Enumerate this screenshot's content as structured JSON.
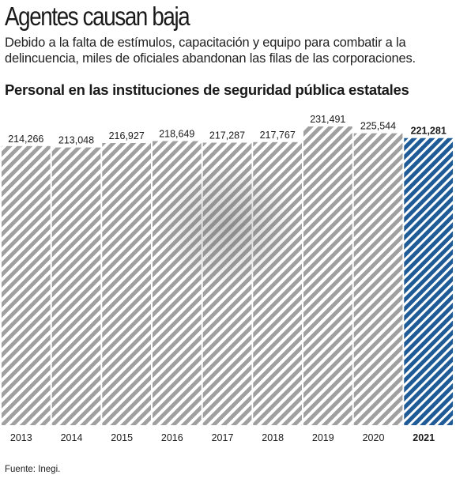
{
  "header": {
    "title": "Agentes causan baja",
    "subtitle": "Debido a la falta de estímulos, capacitación y equipo para combatir a la delincuencia, miles de oficiales abandonan las filas de las corporaciones."
  },
  "source": "Fuente: Inegi.",
  "colors": {
    "bar_stripe": "#a0a0a0",
    "highlight_stripe": "#1f5b96",
    "text": "#1a1a1a"
  },
  "chart_data": {
    "type": "bar",
    "title": "Personal en las instituciones de seguridad pública estatales",
    "xlabel": "",
    "ylabel": "",
    "categories": [
      "2013",
      "2014",
      "2015",
      "2016",
      "2017",
      "2018",
      "2019",
      "2020",
      "2021"
    ],
    "values": [
      214266,
      213048,
      216927,
      218649,
      217287,
      217767,
      231491,
      225544,
      221281
    ],
    "value_labels": [
      "214,266",
      "213,048",
      "216,927",
      "218,649",
      "217,287",
      "217,767",
      "231,491",
      "225,544",
      "221,281"
    ],
    "highlight_category": "2021",
    "ylim": [
      0,
      231491
    ],
    "grid": false,
    "legend": "none"
  }
}
